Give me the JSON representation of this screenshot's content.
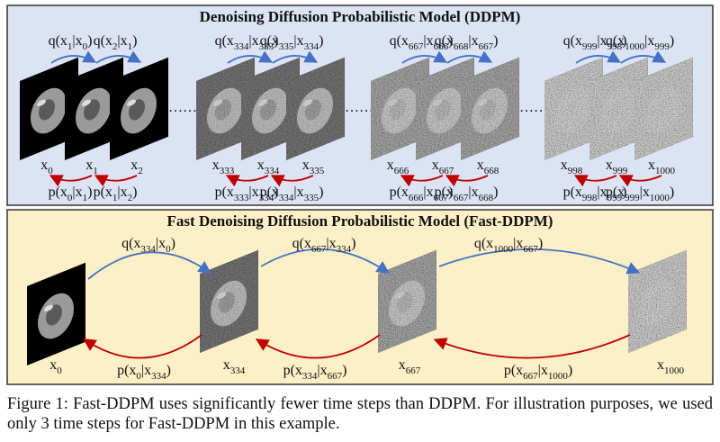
{
  "top": {
    "title": "Denoising Diffusion Probabilistic Model (DDPM)",
    "groups": [
      {
        "nodes": [
          [
            "x",
            "0"
          ],
          [
            "x",
            "1"
          ],
          [
            "x",
            "2"
          ]
        ],
        "forward": [
          [
            "q(x",
            "1",
            "|x",
            "0",
            ")"
          ],
          [
            "q(x",
            "2",
            "|x",
            "1",
            ")"
          ]
        ],
        "reverse": [
          [
            "p(x",
            "0",
            "|x",
            "1",
            ")"
          ],
          [
            "p(x",
            "1",
            "|x",
            "2",
            ")"
          ]
        ]
      },
      {
        "nodes": [
          [
            "x",
            "333"
          ],
          [
            "x",
            "334"
          ],
          [
            "x",
            "335"
          ]
        ],
        "forward": [
          [
            "q(x",
            "334",
            "|x",
            "333",
            ")"
          ],
          [
            "q(x",
            "335",
            "|x",
            "334",
            ")"
          ]
        ],
        "reverse": [
          [
            "p(x",
            "333",
            "|x",
            "334",
            ")"
          ],
          [
            "p(x",
            "334",
            "|x",
            "335",
            ")"
          ]
        ]
      },
      {
        "nodes": [
          [
            "x",
            "666"
          ],
          [
            "x",
            "667"
          ],
          [
            "x",
            "668"
          ]
        ],
        "forward": [
          [
            "q(x",
            "667",
            "|x",
            "666",
            ")"
          ],
          [
            "q(x",
            "668",
            "|x",
            "667",
            ")"
          ]
        ],
        "reverse": [
          [
            "p(x",
            "666",
            "|x",
            "667",
            ")"
          ],
          [
            "p(x",
            "667",
            "|x",
            "668",
            ")"
          ]
        ]
      },
      {
        "nodes": [
          [
            "x",
            "998"
          ],
          [
            "x",
            "999"
          ],
          [
            "x",
            "1000"
          ]
        ],
        "forward": [
          [
            "q(x",
            "999",
            "|x",
            "998",
            ")"
          ],
          [
            "q(x",
            "1000",
            "|x",
            "999",
            ")"
          ]
        ],
        "reverse": [
          [
            "p(x",
            "998",
            "|x",
            "999",
            ")"
          ],
          [
            "p(x",
            "999",
            "|x",
            "1000",
            ")"
          ]
        ]
      }
    ]
  },
  "bottom": {
    "title": "Fast Denoising Diffusion Probabilistic Model (Fast-DDPM)",
    "nodes": [
      [
        "x",
        "0"
      ],
      [
        "x",
        "334"
      ],
      [
        "x",
        "667"
      ],
      [
        "x",
        "1000"
      ]
    ],
    "forward": [
      [
        "q(x",
        "334",
        "|x",
        "0",
        ")"
      ],
      [
        "q(x",
        "667",
        "|x",
        "334",
        ")"
      ],
      [
        "q(x",
        "1000",
        "|x",
        "667",
        ")"
      ]
    ],
    "reverse": [
      [
        "p(x",
        "0",
        "|x",
        "334",
        ")"
      ],
      [
        "p(x",
        "334",
        "|x",
        "667",
        ")"
      ],
      [
        "p(x",
        "667",
        "|x",
        "1000",
        ")"
      ]
    ]
  },
  "caption": "Figure 1: Fast-DDPM uses significantly fewer time steps than DDPM. For illustration purposes, we used only 3 time steps for Fast-DDPM in this example."
}
